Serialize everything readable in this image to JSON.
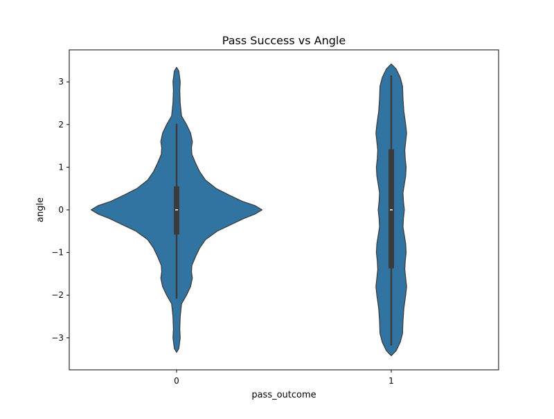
{
  "chart_data": {
    "type": "violin",
    "title": "Pass Success vs Angle",
    "xlabel": "pass_outcome",
    "ylabel": "angle",
    "categories": [
      "0",
      "1"
    ],
    "ylim": [
      -3.75,
      3.75
    ],
    "yticks": [
      -3,
      -2,
      -1,
      0,
      1,
      2,
      3
    ],
    "ytick_labels": [
      "−3",
      "−2",
      "−1",
      "0",
      "1",
      "2",
      "3"
    ],
    "grid": false,
    "legend": "none",
    "colors": {
      "fill": "#3274a1",
      "edge": "#3b3b3b",
      "median": "#ffffff"
    },
    "series": [
      {
        "category": "0",
        "median": 0.0,
        "q1": -0.58,
        "q3": 0.55,
        "whisker_low": -2.08,
        "whisker_high": 2.02,
        "density": [
          [
            -3.34,
            0.0
          ],
          [
            -3.25,
            0.025
          ],
          [
            -3.0,
            0.04
          ],
          [
            -2.8,
            0.035
          ],
          [
            -2.5,
            0.04
          ],
          [
            -2.2,
            0.055
          ],
          [
            -2.0,
            0.11
          ],
          [
            -1.8,
            0.155
          ],
          [
            -1.6,
            0.175
          ],
          [
            -1.45,
            0.165
          ],
          [
            -1.3,
            0.17
          ],
          [
            -1.1,
            0.21
          ],
          [
            -0.9,
            0.255
          ],
          [
            -0.7,
            0.32
          ],
          [
            -0.5,
            0.45
          ],
          [
            -0.35,
            0.6
          ],
          [
            -0.2,
            0.75
          ],
          [
            -0.1,
            0.87
          ],
          [
            0.0,
            0.95
          ],
          [
            0.1,
            0.87
          ],
          [
            0.2,
            0.73
          ],
          [
            0.35,
            0.58
          ],
          [
            0.5,
            0.44
          ],
          [
            0.7,
            0.32
          ],
          [
            0.9,
            0.255
          ],
          [
            1.1,
            0.21
          ],
          [
            1.3,
            0.17
          ],
          [
            1.45,
            0.165
          ],
          [
            1.6,
            0.175
          ],
          [
            1.8,
            0.155
          ],
          [
            2.0,
            0.11
          ],
          [
            2.2,
            0.055
          ],
          [
            2.5,
            0.04
          ],
          [
            2.8,
            0.035
          ],
          [
            3.0,
            0.04
          ],
          [
            3.25,
            0.025
          ],
          [
            3.34,
            0.0
          ]
        ]
      },
      {
        "category": "1",
        "median": 0.0,
        "q1": -1.37,
        "q3": 1.42,
        "whisker_low": -3.18,
        "whisker_high": 3.15,
        "density": [
          [
            -3.42,
            0.0
          ],
          [
            -3.3,
            0.055
          ],
          [
            -3.1,
            0.1
          ],
          [
            -2.9,
            0.125
          ],
          [
            -2.6,
            0.13
          ],
          [
            -2.3,
            0.14
          ],
          [
            -2.0,
            0.16
          ],
          [
            -1.8,
            0.17
          ],
          [
            -1.6,
            0.16
          ],
          [
            -1.4,
            0.15
          ],
          [
            -1.2,
            0.155
          ],
          [
            -1.0,
            0.165
          ],
          [
            -0.8,
            0.16
          ],
          [
            -0.6,
            0.145
          ],
          [
            -0.4,
            0.13
          ],
          [
            -0.2,
            0.135
          ],
          [
            0.0,
            0.145
          ],
          [
            0.2,
            0.135
          ],
          [
            0.4,
            0.13
          ],
          [
            0.6,
            0.145
          ],
          [
            0.8,
            0.16
          ],
          [
            1.0,
            0.165
          ],
          [
            1.2,
            0.155
          ],
          [
            1.4,
            0.15
          ],
          [
            1.6,
            0.16
          ],
          [
            1.8,
            0.17
          ],
          [
            2.0,
            0.16
          ],
          [
            2.3,
            0.14
          ],
          [
            2.6,
            0.13
          ],
          [
            2.9,
            0.125
          ],
          [
            3.1,
            0.1
          ],
          [
            3.3,
            0.055
          ],
          [
            3.42,
            0.0
          ]
        ]
      }
    ]
  }
}
